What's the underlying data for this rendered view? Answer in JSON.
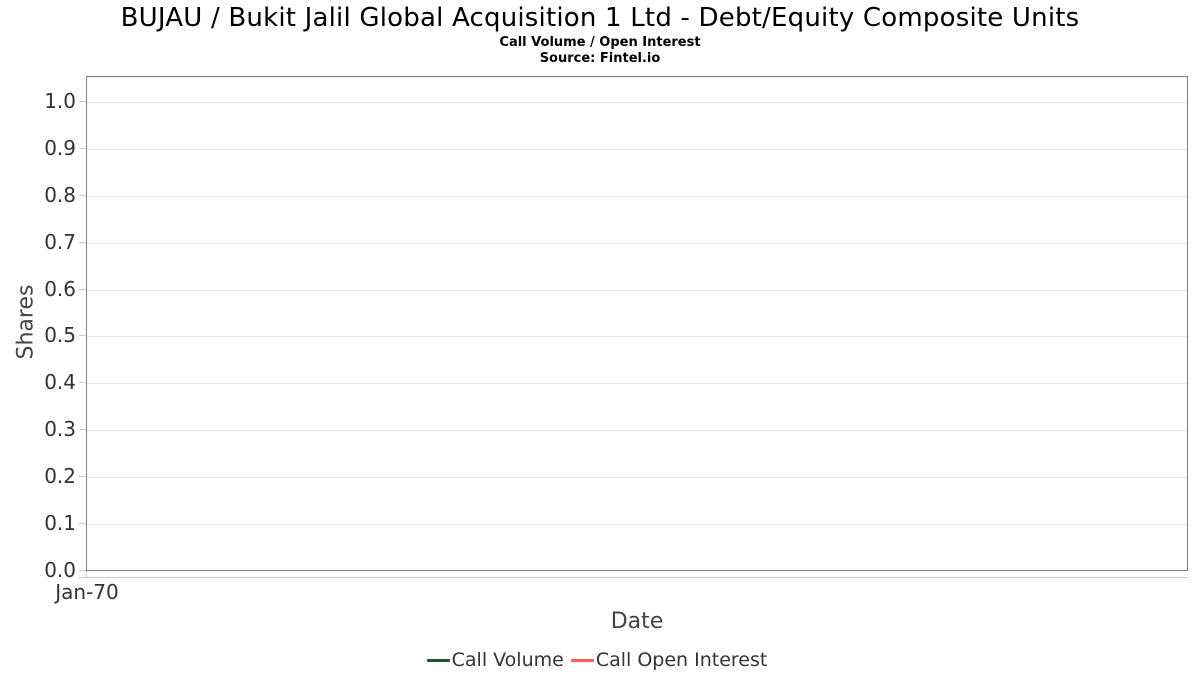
{
  "chart_data": {
    "type": "line",
    "title": "BUJAU / Bukit Jalil Global Acquisition 1 Ltd - Debt/Equity Composite Units",
    "subtitle": "Call Volume / Open Interest",
    "source": "Source: Fintel.io",
    "xlabel": "Date",
    "ylabel": "Shares",
    "ylim": [
      0.0,
      1.0
    ],
    "yticks": [
      "0.0",
      "0.1",
      "0.2",
      "0.3",
      "0.4",
      "0.5",
      "0.6",
      "0.7",
      "0.8",
      "0.9",
      "1.0"
    ],
    "xticks": [
      "Jan-70"
    ],
    "grid": true,
    "legend_position": "bottom",
    "series": [
      {
        "name": "Call Volume",
        "color": "#1e5631",
        "x": [],
        "values": []
      },
      {
        "name": "Call Open Interest",
        "color": "#ff5a5a",
        "x": [],
        "values": []
      }
    ],
    "colors": {
      "plot_border": "#7f7f7f",
      "gridline": "#e7e7e7",
      "axis_line": "#cccccc",
      "tick_label": "#333333",
      "axis_title": "#444444",
      "title_text": "#000000"
    }
  }
}
